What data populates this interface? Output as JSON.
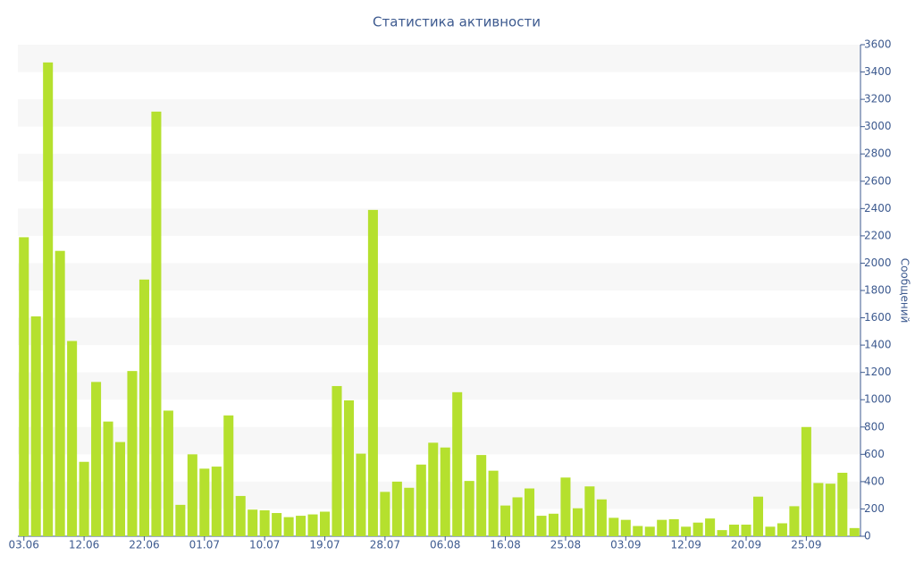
{
  "chart_data": {
    "type": "bar",
    "title": "Статистика активности",
    "y_label": "Сообщений",
    "categories": [
      "03.06",
      null,
      null,
      null,
      null,
      "12.06",
      null,
      null,
      null,
      null,
      "22.06",
      null,
      null,
      null,
      null,
      "01.07",
      null,
      null,
      null,
      null,
      "10.07",
      null,
      null,
      null,
      null,
      "19.07",
      null,
      null,
      null,
      null,
      "28.07",
      null,
      null,
      null,
      null,
      "06.08",
      null,
      null,
      null,
      null,
      "16.08",
      null,
      null,
      null,
      null,
      "25.08",
      null,
      null,
      null,
      null,
      "03.09",
      null,
      null,
      null,
      null,
      "12.09",
      null,
      null,
      null,
      null,
      "20.09",
      null,
      null,
      null,
      null,
      "25.09",
      null,
      null,
      null,
      null
    ],
    "values": [
      2190,
      1610,
      3470,
      2090,
      1430,
      545,
      1130,
      840,
      690,
      1210,
      1880,
      3110,
      920,
      230,
      600,
      495,
      510,
      885,
      295,
      195,
      190,
      170,
      140,
      150,
      160,
      180,
      1100,
      995,
      605,
      2390,
      325,
      400,
      355,
      525,
      685,
      650,
      1055,
      405,
      595,
      480,
      225,
      285,
      350,
      150,
      165,
      430,
      205,
      365,
      270,
      135,
      120,
      75,
      70,
      120,
      125,
      70,
      100,
      130,
      45,
      85,
      85,
      290,
      70,
      95,
      220,
      800,
      390,
      385,
      465,
      60
    ],
    "color": "#b5e02e",
    "ylim": [
      0,
      3600
    ],
    "yticks": [
      0,
      200,
      400,
      600,
      800,
      1000,
      1200,
      1400,
      1600,
      1800,
      2000,
      2200,
      2400,
      2600,
      2800,
      3000,
      3200,
      3400,
      3600
    ],
    "grid": "bands",
    "y_axis_side": "right"
  }
}
